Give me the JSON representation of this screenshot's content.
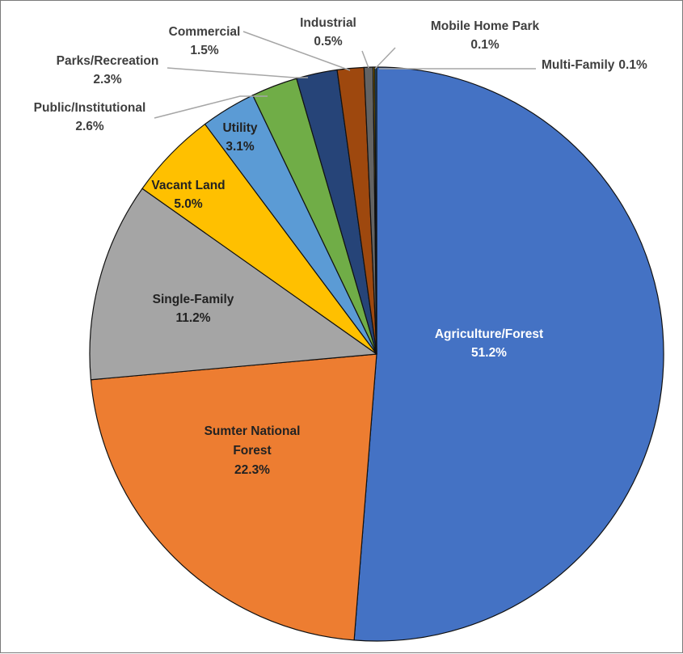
{
  "chart_data": {
    "type": "pie",
    "title": "",
    "slices": [
      {
        "name": "Agriculture/Forest",
        "value": 51.2,
        "label": "51.2%",
        "color": "#4472C4",
        "label_color": "#ffffff"
      },
      {
        "name": "Sumter National Forest",
        "value": 22.3,
        "label": "22.3%",
        "color": "#ED7D31",
        "label_color": "#222222"
      },
      {
        "name": "Single-Family",
        "value": 11.2,
        "label": "11.2%",
        "color": "#A5A5A5",
        "label_color": "#222222"
      },
      {
        "name": "Vacant Land",
        "value": 5.0,
        "label": "5.0%",
        "color": "#FFC000",
        "label_color": "#222222"
      },
      {
        "name": "Utility",
        "value": 3.1,
        "label": "3.1%",
        "color": "#5B9BD5",
        "label_color": "#222222"
      },
      {
        "name": "Public/Institutional",
        "value": 2.6,
        "label": "2.6%",
        "color": "#70AD47",
        "label_color": "#3f3f3f"
      },
      {
        "name": "Parks/Recreation",
        "value": 2.3,
        "label": "2.3%",
        "color": "#264478",
        "label_color": "#3f3f3f"
      },
      {
        "name": "Commercial",
        "value": 1.5,
        "label": "1.5%",
        "color": "#9E480E",
        "label_color": "#3f3f3f"
      },
      {
        "name": "Industrial",
        "value": 0.5,
        "label": "0.5%",
        "color": "#636363",
        "label_color": "#3f3f3f"
      },
      {
        "name": "Mobile Home Park",
        "value": 0.1,
        "label": "0.1%",
        "color": "#997300",
        "label_color": "#3f3f3f"
      },
      {
        "name": "Multi-Family",
        "value": 0.1,
        "label": "0.1%",
        "color": "#255E91",
        "label_color": "#3f3f3f"
      }
    ],
    "start_angle": "12 o'clock",
    "direction": "clockwise",
    "legend": "none",
    "data_labels": "category name and percentage"
  }
}
